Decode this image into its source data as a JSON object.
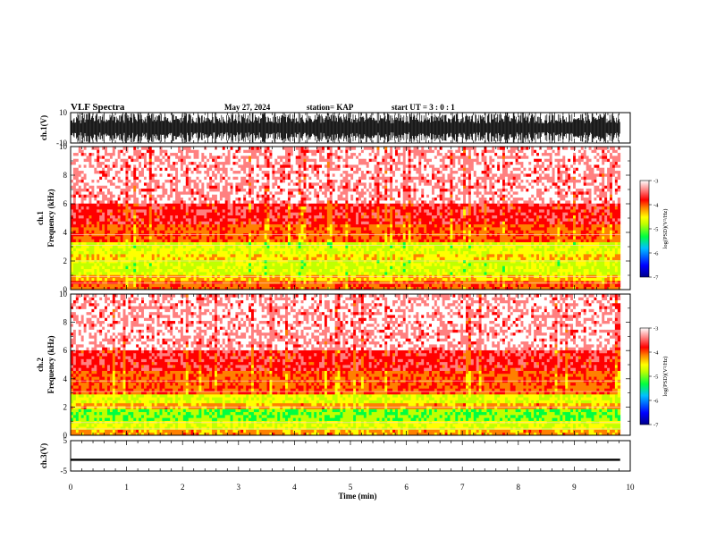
{
  "header": {
    "title": "VLF Spectra",
    "date": "May 27, 2024",
    "station": "station= KAP",
    "start": "start  UT =   3 : 0  : 1"
  },
  "colors": {
    "waveform": "#000000",
    "colormap": [
      "#00008b",
      "#0000ff",
      "#00c0ff",
      "#00ff40",
      "#c0ff00",
      "#ffff00",
      "#ff8000",
      "#ff0000",
      "#ff8080",
      "#ffffff"
    ]
  },
  "chart_data": [
    {
      "type": "line",
      "panel": "ch1-waveform",
      "ylabel": "ch.1(V)",
      "ylim": [
        -10,
        10
      ],
      "yticks": [
        "10",
        "-10"
      ],
      "xlim": [
        0,
        10
      ],
      "description_values": {
        "x_end": 9.82
      }
    },
    {
      "type": "heatmap",
      "panel": "ch1-spectrogram",
      "ylabel": "Frequency (kHz)",
      "channel_label": "ch.1",
      "ylim": [
        0,
        10
      ],
      "yticks": [
        "0",
        "2",
        "4",
        "6",
        "8",
        "10"
      ],
      "xlim": [
        0,
        10
      ],
      "x_end": 9.82,
      "colorbar": {
        "label": "log(PSD)(V²/Hz)",
        "range": [
          -7,
          -3
        ],
        "ticks": [
          "-3",
          "-4",
          "-5",
          "-6",
          "-7"
        ]
      },
      "bands": [
        {
          "fmin": 0.0,
          "fmax": 0.6,
          "level": -4.0
        },
        {
          "fmin": 0.6,
          "fmax": 1.1,
          "level": -4.3
        },
        {
          "fmin": 1.1,
          "fmax": 2.0,
          "level": -4.7
        },
        {
          "fmin": 2.0,
          "fmax": 2.6,
          "level": -4.4
        },
        {
          "fmin": 2.6,
          "fmax": 3.3,
          "level": -4.6
        },
        {
          "fmin": 3.3,
          "fmax": 4.6,
          "level": -4.0
        },
        {
          "fmin": 4.6,
          "fmax": 6.0,
          "level": -3.7
        },
        {
          "fmin": 6.0,
          "fmax": 10.0,
          "level": -3.4
        }
      ]
    },
    {
      "type": "heatmap",
      "panel": "ch2-spectrogram",
      "ylabel": "Frequency (kHz)",
      "channel_label": "ch.2",
      "ylim": [
        0,
        10
      ],
      "yticks": [
        "0",
        "2",
        "4",
        "6",
        "8",
        "10"
      ],
      "xlim": [
        0,
        10
      ],
      "x_end": 9.82,
      "colorbar": {
        "label": "log(PSD)(V²/Hz)",
        "range": [
          -7,
          -3
        ],
        "ticks": [
          "-3",
          "-4",
          "-5",
          "-6",
          "-7"
        ]
      },
      "bands": [
        {
          "fmin": 0.0,
          "fmax": 0.5,
          "level": -4.2
        },
        {
          "fmin": 0.5,
          "fmax": 1.0,
          "level": -4.6
        },
        {
          "fmin": 1.0,
          "fmax": 1.8,
          "level": -5.0
        },
        {
          "fmin": 1.8,
          "fmax": 2.2,
          "level": -4.2
        },
        {
          "fmin": 2.2,
          "fmax": 3.0,
          "level": -4.6
        },
        {
          "fmin": 3.0,
          "fmax": 4.5,
          "level": -4.0
        },
        {
          "fmin": 4.5,
          "fmax": 6.0,
          "level": -3.7
        },
        {
          "fmin": 6.0,
          "fmax": 10.0,
          "level": -3.4
        }
      ]
    },
    {
      "type": "line",
      "panel": "ch3-waveform",
      "ylabel": "ch.3(V)",
      "ylim": [
        -5,
        5
      ],
      "yticks": [
        "5",
        "-5"
      ],
      "xlim": [
        0,
        10
      ],
      "x_end": 9.82,
      "level": -1.3,
      "xlabel": "Time (min)",
      "xticks": [
        "0",
        "1",
        "2",
        "3",
        "4",
        "5",
        "6",
        "7",
        "8",
        "9",
        "10"
      ]
    }
  ]
}
